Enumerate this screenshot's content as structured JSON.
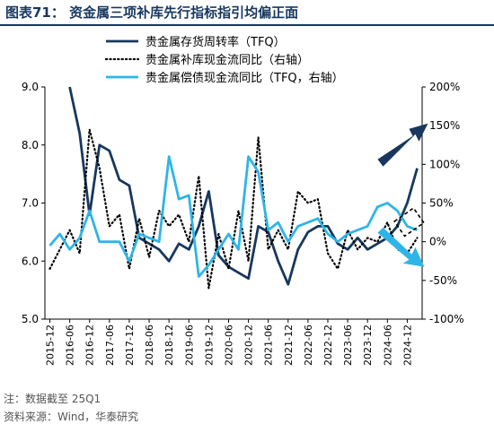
{
  "header": {
    "title": "图表71：  资金属三项补库先行指标指引均偏正面"
  },
  "footer": {
    "note": "注：数据截至 25Q1",
    "source": "资料来源：Wind，华泰研究"
  },
  "chart_data": {
    "type": "line",
    "categories": [
      "2015-12",
      "2016-03",
      "2016-06",
      "2016-09",
      "2016-12",
      "2017-03",
      "2017-06",
      "2017-09",
      "2017-12",
      "2018-03",
      "2018-06",
      "2018-09",
      "2018-12",
      "2019-03",
      "2019-06",
      "2019-09",
      "2019-12",
      "2020-03",
      "2020-06",
      "2020-09",
      "2020-12",
      "2021-03",
      "2021-06",
      "2021-09",
      "2021-12",
      "2022-03",
      "2022-06",
      "2022-09",
      "2022-12",
      "2023-03",
      "2023-06",
      "2023-09",
      "2023-12",
      "2024-03",
      "2024-06",
      "2024-09",
      "2024-12",
      "2025-03"
    ],
    "tick_labels": [
      "2015-12",
      "2016-06",
      "2016-12",
      "2017-06",
      "2017-12",
      "2018-06",
      "2018-12",
      "2019-06",
      "2019-12",
      "2020-06",
      "2020-12",
      "2021-06",
      "2021-12",
      "2022-06",
      "2022-12",
      "2023-06",
      "2023-12",
      "2024-06",
      "2024-12"
    ],
    "left_axis": {
      "min": 5.0,
      "max": 9.0,
      "ticks": [
        "5.0",
        "6.0",
        "7.0",
        "8.0",
        "9.0"
      ]
    },
    "right_axis": {
      "min": -100,
      "max": 200,
      "ticks": [
        "-100%",
        "-50%",
        "0%",
        "50%",
        "100%",
        "150%",
        "200%"
      ]
    },
    "series": [
      {
        "name": "贵金属存货周转率（TFQ）",
        "axis": "left",
        "color": "#17375e",
        "style": "solid",
        "values": [
          null,
          null,
          9.0,
          8.2,
          6.8,
          8.0,
          7.9,
          7.4,
          7.3,
          6.4,
          6.3,
          6.2,
          6.0,
          6.3,
          6.2,
          6.6,
          7.2,
          6.1,
          5.9,
          5.8,
          5.7,
          6.6,
          6.5,
          6.0,
          5.6,
          6.2,
          6.5,
          6.6,
          6.6,
          6.3,
          6.2,
          6.4,
          6.2,
          6.3,
          6.4,
          6.6,
          7.0,
          7.6
        ]
      },
      {
        "name": "贵金属补库现金流同比（右轴）",
        "axis": "right",
        "color": "#000000",
        "style": "dotted",
        "values": [
          -35,
          -10,
          15,
          -15,
          145,
          95,
          20,
          35,
          -35,
          30,
          -20,
          40,
          20,
          35,
          0,
          85,
          -60,
          10,
          -35,
          40,
          -25,
          135,
          -10,
          15,
          -10,
          65,
          50,
          55,
          -15,
          -35,
          15,
          -10,
          5,
          0,
          25,
          -10,
          -15,
          5
        ]
      },
      {
        "name": "贵金属偿债现金流同比（TFQ，右轴）",
        "axis": "right",
        "color": "#2eb5e8",
        "style": "solid",
        "values": [
          -5,
          10,
          -10,
          5,
          40,
          0,
          0,
          0,
          -25,
          10,
          5,
          0,
          110,
          55,
          60,
          -45,
          -30,
          -10,
          10,
          -10,
          110,
          90,
          15,
          25,
          0,
          20,
          25,
          30,
          10,
          0,
          10,
          15,
          20,
          45,
          50,
          40,
          20,
          15
        ]
      }
    ],
    "annotations": [
      {
        "name": "up-arrow",
        "color": "#17375e"
      },
      {
        "name": "down-arrow",
        "color": "#2eb5e8"
      },
      {
        "name": "dashed-box",
        "color": "#000000"
      }
    ],
    "legend_position": "top-center"
  }
}
